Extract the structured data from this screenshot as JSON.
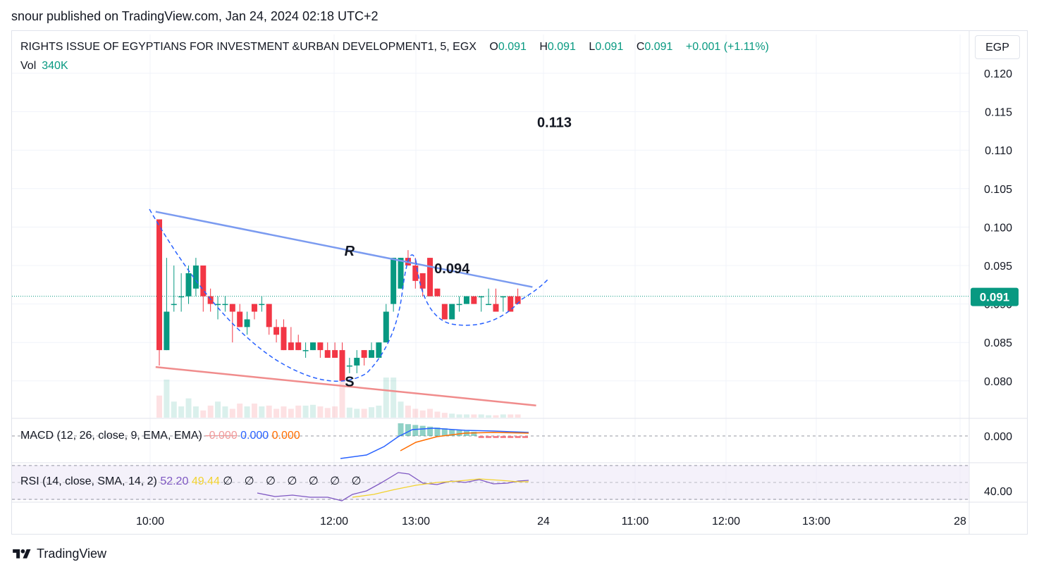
{
  "publisher_line": "snour published on TradingView.com, Jan 24, 2024 02:18 UTC+2",
  "legend": {
    "symbol": "RIGHTS ISSUE OF EGYPTIANS FOR INVESTMENT &URBAN DEVELOPMENT1, 5, EGX",
    "o_label": "O",
    "o_value": "0.091",
    "h_label": "H",
    "h_value": "0.091",
    "l_label": "L",
    "l_value": "0.091",
    "c_label": "C",
    "c_value": "0.091",
    "change": "+0.001 (+1.11%)",
    "vol_label": "Vol",
    "vol_value": "340K"
  },
  "currency_button": "EGP",
  "macd_label": {
    "name": "MACD (12, 26, close, 9, EMA, EMA)",
    "hist": "-0.000",
    "macd": "0.000",
    "signal": "0.000"
  },
  "rsi_label": {
    "name": "RSI (14, close, SMA, 14, 2)",
    "rsi": "52.20",
    "sma": "49.44",
    "empty": "∅ ∅ ∅ ∅ ∅ ∅ ∅"
  },
  "footer_brand": "TradingView",
  "colors": {
    "up": "#089981",
    "down": "#f23645",
    "resistance": "#7b9bf0",
    "support": "#f08c8c",
    "cup": "#2962ff",
    "macd": "#2962ff",
    "signal": "#ff6d00",
    "rsi": "#7e57c2",
    "rsi_sma": "#f2d22e"
  },
  "icons": [
    "tradingview-logo-icon"
  ],
  "chart_data": {
    "type": "candlestick",
    "interval": "5",
    "currency": "EGP",
    "price_axis": {
      "ticks": [
        "0.120",
        "0.115",
        "0.110",
        "0.105",
        "0.100",
        "0.095",
        "0.090",
        "0.085",
        "0.080"
      ],
      "min": 0.0755,
      "max": 0.1215
    },
    "current_price_label": "0.091",
    "current_price": 0.091,
    "time_axis": [
      "10:00",
      "12:00",
      "13:00",
      "24",
      "11:00",
      "12:00",
      "13:00",
      "28"
    ],
    "annotations": [
      {
        "text": "0.113",
        "price": 0.113,
        "bar": 54
      },
      {
        "text": "0.094",
        "price": 0.094,
        "bar": 40
      },
      {
        "text": "R",
        "price": 0.0963,
        "bar": 26
      },
      {
        "text": "S",
        "price": 0.0793,
        "bar": 26
      }
    ],
    "trendlines": [
      {
        "name": "resistance",
        "from": {
          "bar": -0.5,
          "price": 0.102
        },
        "to": {
          "bar": 51,
          "price": 0.0922
        }
      },
      {
        "name": "support",
        "from": {
          "bar": -0.5,
          "price": 0.0818
        },
        "to": {
          "bar": 51.5,
          "price": 0.0768
        }
      }
    ],
    "candles": [
      {
        "o": 0.101,
        "h": 0.101,
        "l": 0.082,
        "c": 0.084
      },
      {
        "o": 0.084,
        "h": 0.096,
        "l": 0.084,
        "c": 0.089
      },
      {
        "o": 0.09,
        "h": 0.095,
        "l": 0.089,
        "c": 0.09
      },
      {
        "o": 0.091,
        "h": 0.094,
        "l": 0.089,
        "c": 0.091
      },
      {
        "o": 0.091,
        "h": 0.095,
        "l": 0.09,
        "c": 0.094
      },
      {
        "o": 0.092,
        "h": 0.096,
        "l": 0.091,
        "c": 0.095
      },
      {
        "o": 0.095,
        "h": 0.095,
        "l": 0.089,
        "c": 0.091
      },
      {
        "o": 0.091,
        "h": 0.092,
        "l": 0.089,
        "c": 0.09
      },
      {
        "o": 0.09,
        "h": 0.091,
        "l": 0.088,
        "c": 0.09
      },
      {
        "o": 0.09,
        "h": 0.091,
        "l": 0.089,
        "c": 0.09
      },
      {
        "o": 0.09,
        "h": 0.09,
        "l": 0.085,
        "c": 0.089
      },
      {
        "o": 0.089,
        "h": 0.09,
        "l": 0.087,
        "c": 0.087
      },
      {
        "o": 0.087,
        "h": 0.089,
        "l": 0.086,
        "c": 0.088
      },
      {
        "o": 0.09,
        "h": 0.09,
        "l": 0.088,
        "c": 0.089
      },
      {
        "o": 0.09,
        "h": 0.091,
        "l": 0.089,
        "c": 0.09
      },
      {
        "o": 0.09,
        "h": 0.09,
        "l": 0.086,
        "c": 0.087
      },
      {
        "o": 0.087,
        "h": 0.088,
        "l": 0.085,
        "c": 0.086
      },
      {
        "o": 0.087,
        "h": 0.088,
        "l": 0.084,
        "c": 0.084
      },
      {
        "o": 0.085,
        "h": 0.087,
        "l": 0.084,
        "c": 0.084
      },
      {
        "o": 0.085,
        "h": 0.086,
        "l": 0.084,
        "c": 0.084
      },
      {
        "o": 0.084,
        "h": 0.085,
        "l": 0.083,
        "c": 0.084
      },
      {
        "o": 0.084,
        "h": 0.085,
        "l": 0.084,
        "c": 0.085
      },
      {
        "o": 0.085,
        "h": 0.085,
        "l": 0.083,
        "c": 0.084
      },
      {
        "o": 0.084,
        "h": 0.085,
        "l": 0.083,
        "c": 0.083
      },
      {
        "o": 0.084,
        "h": 0.085,
        "l": 0.083,
        "c": 0.083
      },
      {
        "o": 0.084,
        "h": 0.085,
        "l": 0.08,
        "c": 0.08
      },
      {
        "o": 0.082,
        "h": 0.083,
        "l": 0.081,
        "c": 0.082
      },
      {
        "o": 0.082,
        "h": 0.084,
        "l": 0.081,
        "c": 0.083
      },
      {
        "o": 0.084,
        "h": 0.084,
        "l": 0.082,
        "c": 0.083
      },
      {
        "o": 0.083,
        "h": 0.085,
        "l": 0.083,
        "c": 0.084
      },
      {
        "o": 0.083,
        "h": 0.085,
        "l": 0.083,
        "c": 0.085
      },
      {
        "o": 0.085,
        "h": 0.09,
        "l": 0.085,
        "c": 0.089
      },
      {
        "o": 0.09,
        "h": 0.096,
        "l": 0.089,
        "c": 0.096
      },
      {
        "o": 0.092,
        "h": 0.096,
        "l": 0.092,
        "c": 0.096
      },
      {
        "o": 0.096,
        "h": 0.097,
        "l": 0.095,
        "c": 0.095
      },
      {
        "o": 0.095,
        "h": 0.096,
        "l": 0.092,
        "c": 0.093
      },
      {
        "o": 0.094,
        "h": 0.094,
        "l": 0.091,
        "c": 0.092
      },
      {
        "o": 0.096,
        "h": 0.096,
        "l": 0.091,
        "c": 0.091
      },
      {
        "o": 0.092,
        "h": 0.092,
        "l": 0.091,
        "c": 0.091
      },
      {
        "o": 0.09,
        "h": 0.09,
        "l": 0.088,
        "c": 0.088
      },
      {
        "o": 0.088,
        "h": 0.09,
        "l": 0.088,
        "c": 0.09
      },
      {
        "o": 0.09,
        "h": 0.091,
        "l": 0.089,
        "c": 0.09
      },
      {
        "o": 0.09,
        "h": 0.091,
        "l": 0.09,
        "c": 0.091
      },
      {
        "o": 0.091,
        "h": 0.091,
        "l": 0.09,
        "c": 0.09
      },
      {
        "o": 0.091,
        "h": 0.091,
        "l": 0.089,
        "c": 0.091
      },
      {
        "o": 0.09,
        "h": 0.092,
        "l": 0.09,
        "c": 0.09
      },
      {
        "o": 0.09,
        "h": 0.092,
        "l": 0.089,
        "c": 0.089
      },
      {
        "o": 0.091,
        "h": 0.091,
        "l": 0.089,
        "c": 0.091
      },
      {
        "o": 0.091,
        "h": 0.091,
        "l": 0.089,
        "c": 0.089
      },
      {
        "o": 0.091,
        "h": 0.092,
        "l": 0.09,
        "c": 0.09
      }
    ],
    "volume": [
      55,
      95,
      40,
      28,
      48,
      28,
      18,
      30,
      40,
      28,
      22,
      35,
      28,
      35,
      28,
      30,
      22,
      28,
      22,
      30,
      30,
      32,
      28,
      24,
      28,
      100,
      25,
      22,
      22,
      26,
      30,
      100,
      100,
      40,
      30,
      22,
      18,
      22,
      15,
      12,
      10,
      8,
      8,
      8,
      8,
      6,
      6,
      8,
      8,
      8
    ]
  }
}
